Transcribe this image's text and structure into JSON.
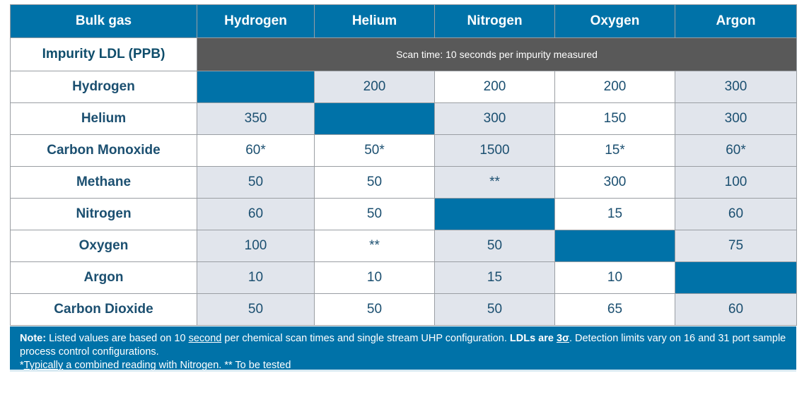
{
  "header": {
    "first": "Bulk gas",
    "gases": [
      "Hydrogen",
      "Helium",
      "Nitrogen",
      "Oxygen",
      "Argon"
    ]
  },
  "ldl_row": {
    "label": "Impurity LDL (PPB)",
    "scan_text": "Scan time: 10 seconds per impurity measured"
  },
  "rows": [
    {
      "label": "Hydrogen",
      "values": [
        "",
        "200",
        "200",
        "200",
        "300"
      ]
    },
    {
      "label": "Helium",
      "values": [
        "350",
        "",
        "300",
        "150",
        "300"
      ]
    },
    {
      "label": "Carbon Monoxide",
      "values": [
        "60*",
        "50*",
        "1500",
        "15*",
        "60*"
      ]
    },
    {
      "label": "Methane",
      "values": [
        "50",
        "50",
        "**",
        "300",
        "100"
      ]
    },
    {
      "label": "Nitrogen",
      "values": [
        "60",
        "50",
        "",
        "15",
        "60"
      ]
    },
    {
      "label": "Oxygen",
      "values": [
        "100",
        "**",
        "50",
        "",
        "75"
      ]
    },
    {
      "label": "Argon",
      "values": [
        "10",
        "10",
        "15",
        "10",
        ""
      ]
    },
    {
      "label": "Carbon Dioxide",
      "values": [
        "50",
        "50",
        "50",
        "65",
        "60"
      ]
    }
  ],
  "note": {
    "bold_lead": "Note:",
    "t1": " Listed values are based on 10 ",
    "u1": "second",
    "t2": " per chemical scan times and single stream UHP configuration.  ",
    "b2": "LDLs are ",
    "b2u": "3σ",
    "t3": ". Detection limits vary on 16 and 31 port sample process control configurations.",
    "l2_a": "*",
    "l2_u": "Typically",
    "l2_b": " a combined reading with Nitrogen. ** To be tested"
  },
  "colors": {
    "header_blue": "#0072a8",
    "scan_gray": "#595959",
    "cell_gray": "#e1e5ec",
    "label_text": "#0f4d6b"
  }
}
